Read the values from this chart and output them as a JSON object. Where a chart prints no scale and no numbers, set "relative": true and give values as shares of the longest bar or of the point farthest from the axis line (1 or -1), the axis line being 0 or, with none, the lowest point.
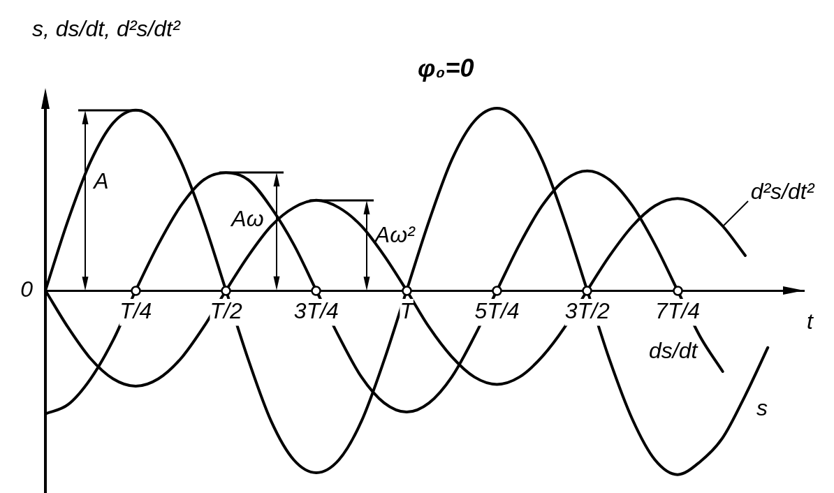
{
  "chart_data": {
    "type": "line",
    "title": "φ₀=0",
    "xlabel": "t",
    "ylabel": "s, ds/dt, d²s/dt²",
    "relative": true,
    "categories": [
      null,
      null,
      null,
      null,
      "T/4",
      null,
      null,
      null,
      "T/2",
      null,
      null,
      null,
      "3T/4",
      null,
      null,
      null,
      "T",
      null,
      null,
      null,
      "5T/4",
      null,
      null,
      null,
      "3T/2",
      null,
      null,
      null,
      "7T/4",
      null,
      null,
      null,
      null
    ],
    "series": [
      {
        "name": "s",
        "color": "#000000",
        "values": [
          0,
          0.38,
          0.7,
          0.91,
          0.98,
          0.91,
          0.7,
          0.38,
          0,
          -0.38,
          -0.71,
          -0.92,
          -0.99,
          -0.92,
          -0.71,
          -0.38,
          0,
          0.38,
          0.71,
          0.92,
          0.99,
          0.92,
          0.71,
          0.38,
          0,
          -0.38,
          -0.7,
          -0.92,
          -1,
          -0.93,
          -0.8,
          -0.57,
          -0.31
        ]
      },
      {
        "name": "ds/dt",
        "color": "#000000",
        "values": [
          -0.67,
          -0.62,
          -0.48,
          -0.27,
          0,
          0.25,
          0.46,
          0.6,
          0.64,
          0.6,
          0.45,
          0.25,
          0,
          -0.25,
          -0.47,
          -0.61,
          -0.66,
          -0.61,
          -0.47,
          -0.25,
          0,
          0.25,
          0.46,
          0.6,
          0.65,
          0.6,
          0.46,
          0.25,
          0,
          -0.25,
          -0.44,
          null,
          null
        ]
      },
      {
        "name": "d²s/dt²",
        "color": "#000000",
        "values": [
          0,
          -0.2,
          -0.37,
          -0.48,
          -0.52,
          -0.48,
          -0.37,
          -0.2,
          0,
          0.19,
          0.35,
          0.45,
          0.49,
          0.45,
          0.35,
          0.19,
          0,
          -0.2,
          -0.36,
          -0.47,
          -0.51,
          -0.47,
          -0.36,
          -0.2,
          0,
          0.19,
          0.35,
          0.46,
          0.5,
          0.46,
          0.35,
          0.19,
          null
        ]
      }
    ],
    "annotations": [
      "0",
      "A",
      "Aω",
      "Aω²"
    ]
  }
}
